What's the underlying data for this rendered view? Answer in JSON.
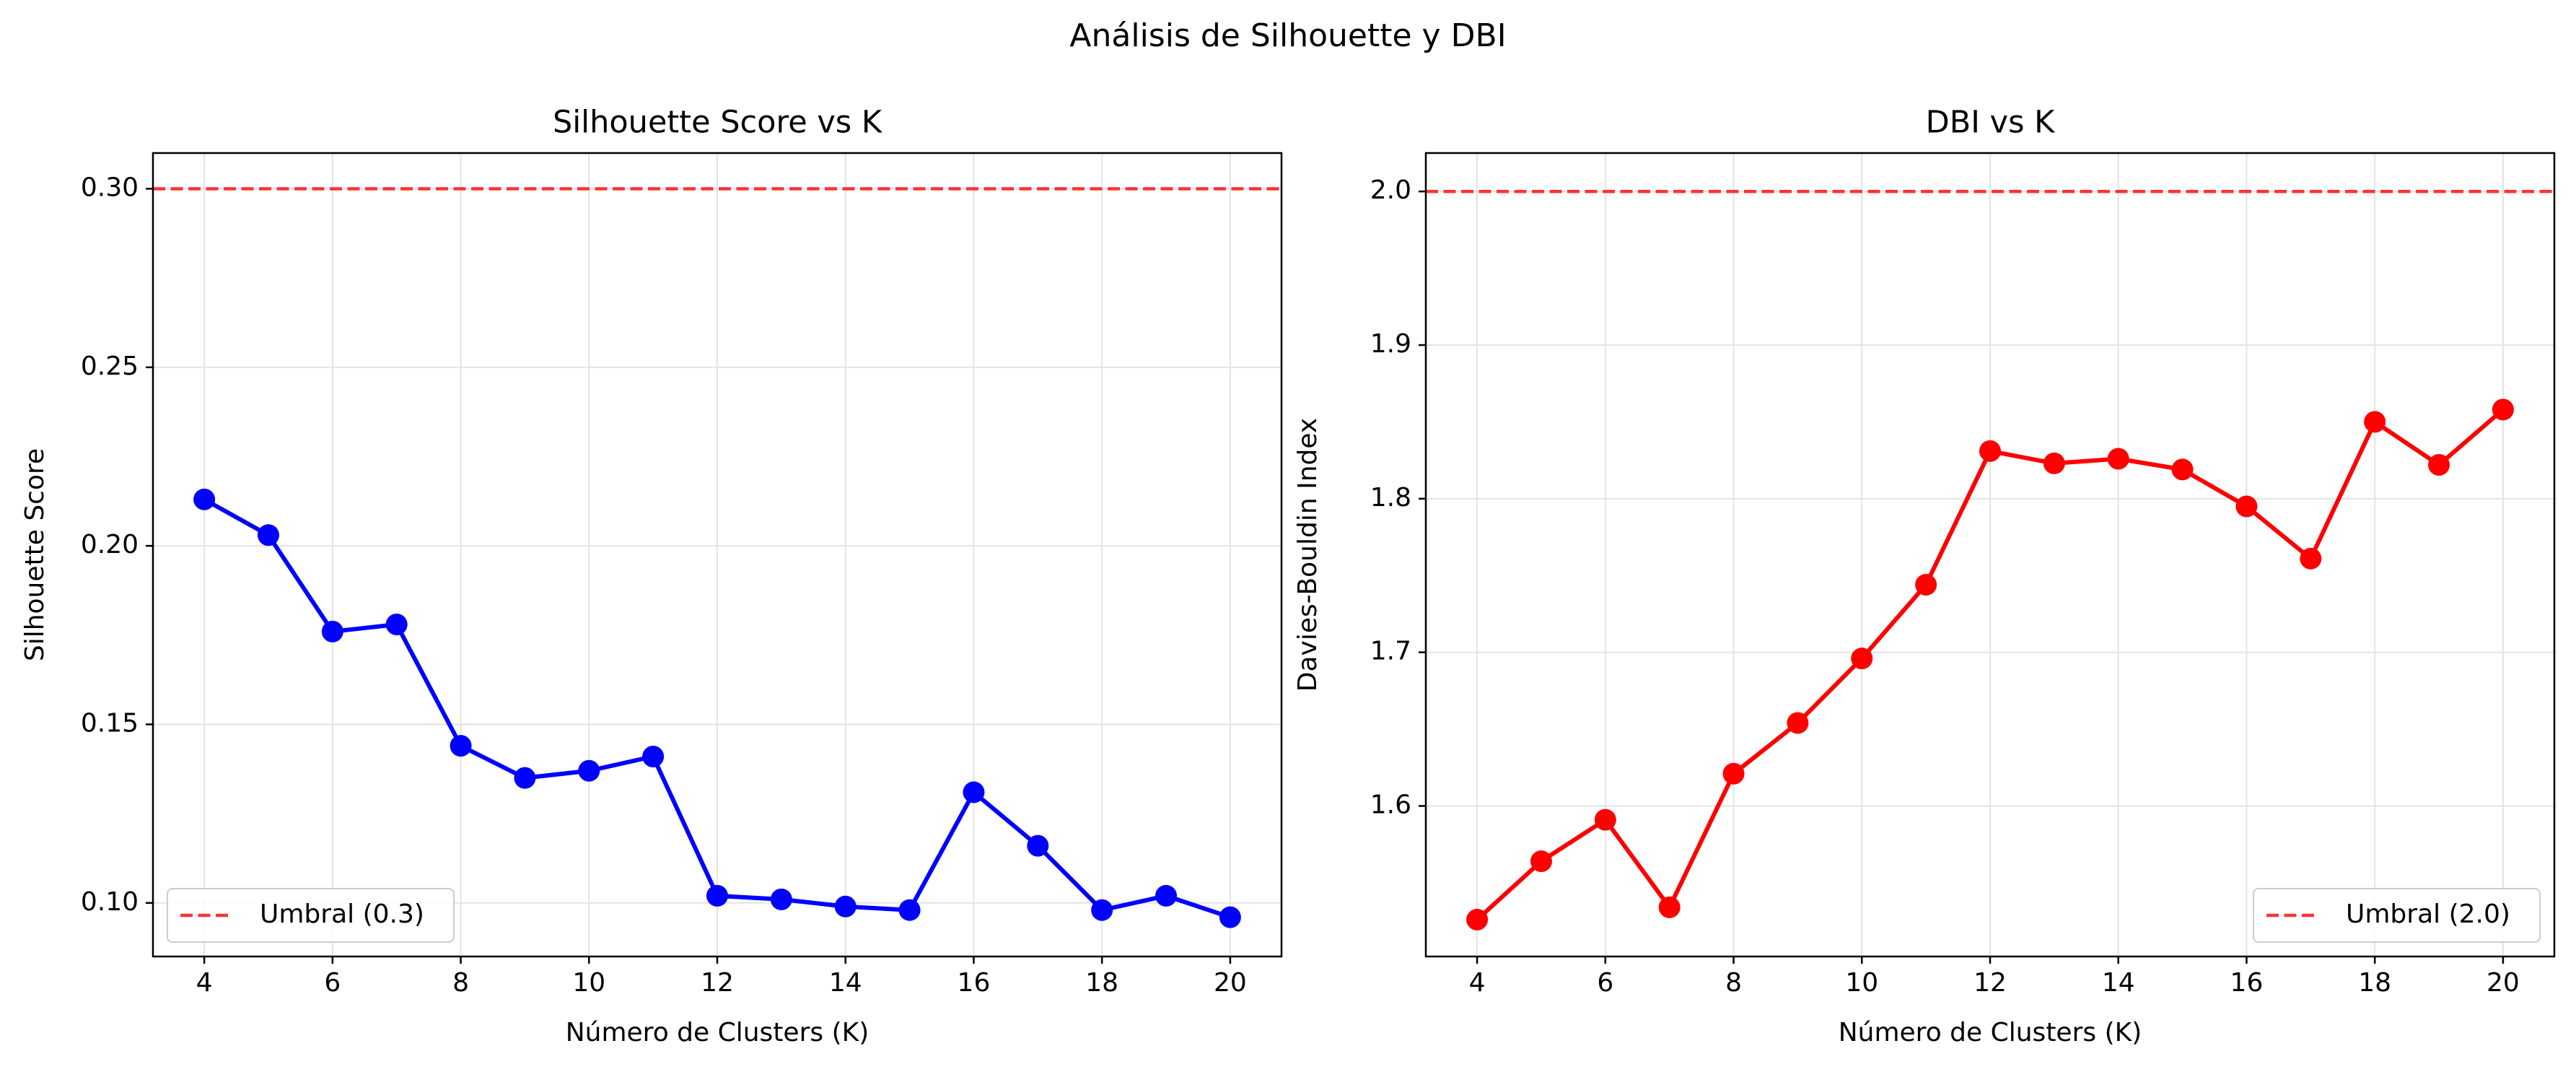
{
  "figure": {
    "suptitle": "Análisis de Silhouette y DBI"
  },
  "chart_data": [
    {
      "type": "line",
      "title": "Silhouette Score vs K",
      "xlabel": "Número de Clusters (K)",
      "ylabel": "Silhouette Score",
      "xlim": [
        3.2,
        20.8
      ],
      "ylim": [
        0.085,
        0.31
      ],
      "xticks": [
        "4",
        "6",
        "8",
        "10",
        "12",
        "14",
        "16",
        "18",
        "20"
      ],
      "yticks": [
        "0.10",
        "0.15",
        "0.20",
        "0.25",
        "0.30"
      ],
      "grid": true,
      "legend_position": "lower-left",
      "x": [
        4,
        5,
        6,
        7,
        8,
        9,
        10,
        11,
        12,
        13,
        14,
        15,
        16,
        17,
        18,
        19,
        20
      ],
      "series": [
        {
          "color": "#0000ff",
          "marker": "circle",
          "values": [
            0.213,
            0.203,
            0.176,
            0.178,
            0.144,
            0.135,
            0.137,
            0.141,
            0.102,
            0.101,
            0.099,
            0.098,
            0.131,
            0.116,
            0.098,
            0.102,
            0.096
          ]
        }
      ],
      "threshold": {
        "value": 0.3,
        "label": "Umbral (0.3)",
        "color": "#ff3333",
        "style": "dashed"
      }
    },
    {
      "type": "line",
      "title": "DBI vs K",
      "xlabel": "Número de Clusters (K)",
      "ylabel": "Davies-Bouldin Index",
      "xlim": [
        3.2,
        20.8
      ],
      "ylim": [
        1.502,
        2.025
      ],
      "xticks": [
        "4",
        "6",
        "8",
        "10",
        "12",
        "14",
        "16",
        "18",
        "20"
      ],
      "yticks": [
        "1.6",
        "1.7",
        "1.8",
        "1.9",
        "2.0"
      ],
      "grid": true,
      "legend_position": "lower-right",
      "x": [
        4,
        5,
        6,
        7,
        8,
        9,
        10,
        11,
        12,
        13,
        14,
        15,
        16,
        17,
        18,
        19,
        20
      ],
      "series": [
        {
          "color": "#ff0000",
          "marker": "circle",
          "values": [
            1.526,
            1.564,
            1.591,
            1.534,
            1.621,
            1.654,
            1.696,
            1.744,
            1.831,
            1.823,
            1.826,
            1.819,
            1.795,
            1.761,
            1.85,
            1.822,
            1.858
          ]
        }
      ],
      "threshold": {
        "value": 2.0,
        "label": "Umbral (2.0)",
        "color": "#ff3333",
        "style": "dashed"
      }
    }
  ]
}
